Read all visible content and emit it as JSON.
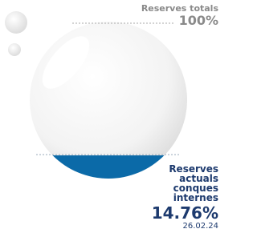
{
  "chart_data": {
    "type": "gauge",
    "title": "Reserves totals",
    "max": {
      "value": 100,
      "label": "100%"
    },
    "series_label": "Reserves actuals conques internes",
    "value": 14.76,
    "value_label": "14.76%",
    "date": "26.02.24",
    "color": "#0b6aa8"
  }
}
